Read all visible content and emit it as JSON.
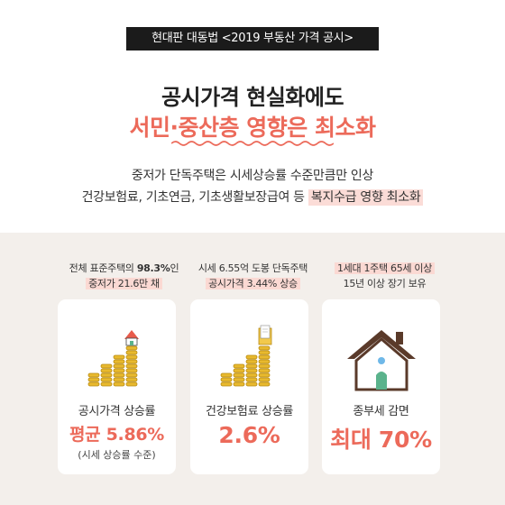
{
  "header": {
    "series_tag": "현대판 대동법 <2019 부동산 가격 공시>",
    "headline_line1": "공시가격 현실화에도",
    "headline_line2": "서민·중산층 영향은 최소화",
    "sub_line1": "중저가 단독주택은 시세상승률 수준만큼만 인상",
    "sub_line2_plain": "건강보험료, 기초연금, 기초생활보장급여 등 ",
    "sub_line2_highlight": "복지수급 영향 최소화"
  },
  "cards": [
    {
      "head_line1_pre": "전체 표준주택의 ",
      "head_line1_bold": "98.3%",
      "head_line1_post": "인",
      "head_line2": "중저가 21.6만 채",
      "label": "공시가격 상승률",
      "value": "평균 5.86%",
      "note": "(시세 상승률 수준)",
      "icon": "coin-stacks-house-icon"
    },
    {
      "head_line1": "시세 6.55억 도봉 단독주택",
      "head_line2": "공시가격 3.44% 상승",
      "label": "건강보험료 상승률",
      "value": "2.6%",
      "icon": "coin-stacks-document-icon"
    },
    {
      "head_line1": "1세대 1주택 65세 이상",
      "head_line2": "15년 이상 장기 보유",
      "label": "종부세 감면",
      "value": "최대 70%",
      "icon": "house-icon"
    }
  ],
  "colors": {
    "accent": "#ec6a5a",
    "highlight": "#fbdcd7",
    "bottom_bg": "#f3efeb",
    "coin": "#e8b92e"
  }
}
